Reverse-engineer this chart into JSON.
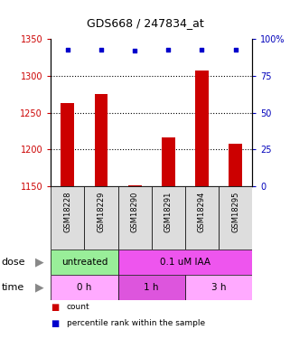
{
  "title": "GDS668 / 247834_at",
  "samples": [
    "GSM18228",
    "GSM18229",
    "GSM18290",
    "GSM18291",
    "GSM18294",
    "GSM18295"
  ],
  "bar_values": [
    1263,
    1275,
    1152,
    1217,
    1307,
    1208
  ],
  "dot_values": [
    93,
    93,
    92,
    93,
    93,
    93
  ],
  "ylim_left": [
    1150,
    1350
  ],
  "ylim_right": [
    0,
    100
  ],
  "yticks_left": [
    1150,
    1200,
    1250,
    1300,
    1350
  ],
  "yticks_right": [
    0,
    25,
    50,
    75,
    100
  ],
  "bar_color": "#cc0000",
  "dot_color": "#0000cc",
  "bar_width": 0.4,
  "dose_labels": [
    {
      "label": "untreated",
      "cols": [
        0,
        1
      ],
      "color": "#99ee99"
    },
    {
      "label": "0.1 uM IAA",
      "cols": [
        2,
        3,
        4,
        5
      ],
      "color": "#ee55ee"
    }
  ],
  "time_labels": [
    {
      "label": "0 h",
      "cols": [
        0,
        1
      ],
      "color": "#ffaaff"
    },
    {
      "label": "1 h",
      "cols": [
        2,
        3
      ],
      "color": "#dd55dd"
    },
    {
      "label": "3 h",
      "cols": [
        4,
        5
      ],
      "color": "#ffaaff"
    }
  ],
  "legend_items": [
    {
      "label": "count",
      "color": "#cc0000"
    },
    {
      "label": "percentile rank within the sample",
      "color": "#0000cc"
    }
  ],
  "sample_bg_color": "#dddddd",
  "axis_label_color_left": "#cc0000",
  "axis_label_color_right": "#0000bb"
}
